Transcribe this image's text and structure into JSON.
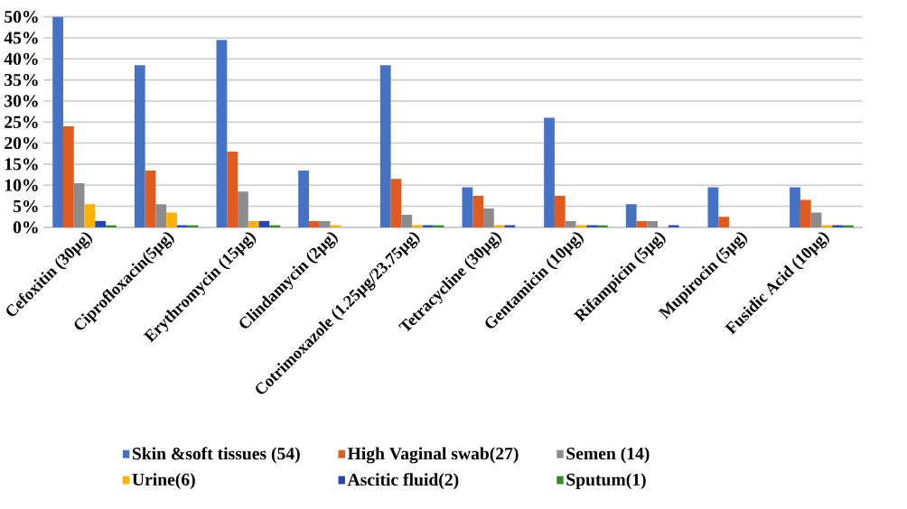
{
  "chart_data": {
    "type": "bar",
    "categories": [
      "Cefoxitin (30µg)",
      "Ciprofloxacin(5µg)",
      "Erythromycin (15µg)",
      "Clindamycin (2µg)",
      "Cotrimoxazole (1.25µg/23.75µg)",
      "Tetracycline (30µg)",
      "Gentamicin (10µg)",
      "Rifampicin (5µg)",
      "Mupirocin (5µg)",
      "Fusidic Acid (10µg)"
    ],
    "series": [
      {
        "name": "Skin &soft tissues (54)",
        "color": "#4472c4",
        "values": [
          50,
          38.5,
          44.5,
          13.5,
          38.5,
          9.5,
          26,
          5.5,
          9.5,
          9.5
        ]
      },
      {
        "name": "High Vaginal swab(27)",
        "color": "#e15a1f",
        "values": [
          24,
          13.5,
          18,
          1.5,
          11.5,
          7.5,
          7.5,
          1.5,
          2.5,
          6.5
        ]
      },
      {
        "name": "Semen (14)",
        "color": "#8c8c8c",
        "values": [
          10.5,
          5.5,
          8.5,
          1.5,
          3,
          4.5,
          1.5,
          1.5,
          0,
          3.5
        ]
      },
      {
        "name": "Urine(6)",
        "color": "#ffb000",
        "values": [
          5.5,
          3.5,
          1.5,
          0.5,
          0.5,
          0.5,
          0.5,
          0,
          0,
          0.5
        ]
      },
      {
        "name": "Ascitic fluid(2)",
        "color": "#2446b8",
        "values": [
          1.5,
          0.5,
          1.5,
          0,
          0.5,
          0.5,
          0.5,
          0.5,
          0,
          0.5
        ]
      },
      {
        "name": "Sputum(1)",
        "color": "#3a8a2a",
        "values": [
          0.5,
          0.5,
          0.5,
          0,
          0.5,
          0,
          0.5,
          0,
          0,
          0.5
        ]
      }
    ],
    "ylim": [
      0,
      50
    ],
    "yticks": [
      {
        "value": 0,
        "label": "0%"
      },
      {
        "value": 5,
        "label": "5%"
      },
      {
        "value": 10,
        "label": "10%"
      },
      {
        "value": 15,
        "label": "15%"
      },
      {
        "value": 20,
        "label": "20%"
      },
      {
        "value": 25,
        "label": "25%"
      },
      {
        "value": 30,
        "label": "30%"
      },
      {
        "value": 35,
        "label": "35%"
      },
      {
        "value": 40,
        "label": "40%"
      },
      {
        "value": 45,
        "label": "45%"
      },
      {
        "value": 50,
        "label": "50%"
      }
    ],
    "grid": "y",
    "legend": "bottom"
  }
}
